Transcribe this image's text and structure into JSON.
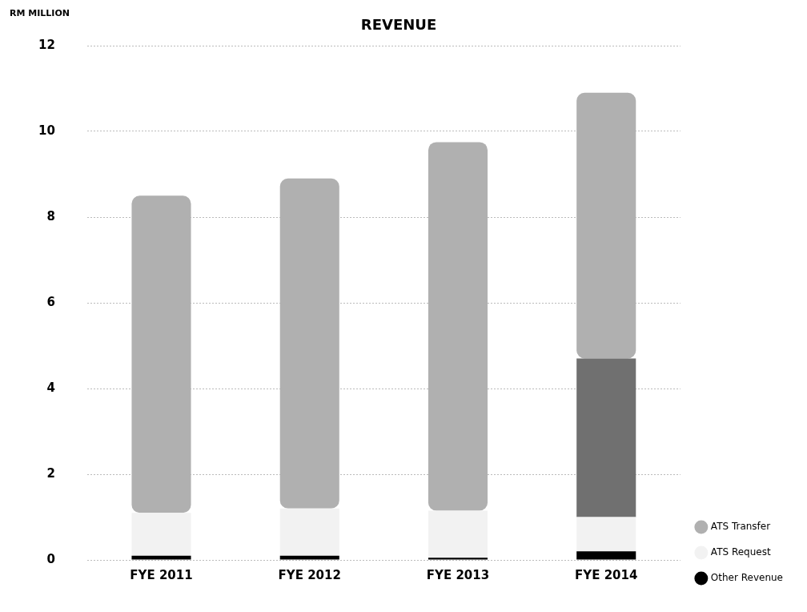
{
  "chart_data": {
    "type": "bar",
    "title": "REVENUE",
    "ylabel": "RM MILLION",
    "stacked": true,
    "categories": [
      "FYE 2011",
      "FYE 2012",
      "FYE 2013",
      "FYE 2014"
    ],
    "series": [
      {
        "name": "Other Revenue",
        "color": "#000000",
        "values": [
          0.1,
          0.1,
          0.05,
          0.2
        ]
      },
      {
        "name": "ATS Request",
        "color": "#f2f2f2",
        "values": [
          1.0,
          1.1,
          1.1,
          0.8
        ]
      },
      {
        "color": "#707070",
        "values": [
          0,
          0,
          0,
          3.7
        ]
      },
      {
        "name": "ATS Transfer",
        "color": "#b0b0b0",
        "values": [
          7.4,
          7.7,
          8.6,
          6.2
        ]
      }
    ],
    "ylim": [
      0,
      12
    ],
    "yticks": [
      0,
      2,
      4,
      6,
      8,
      10,
      12
    ],
    "grid": "y",
    "legend": "bottom right"
  }
}
